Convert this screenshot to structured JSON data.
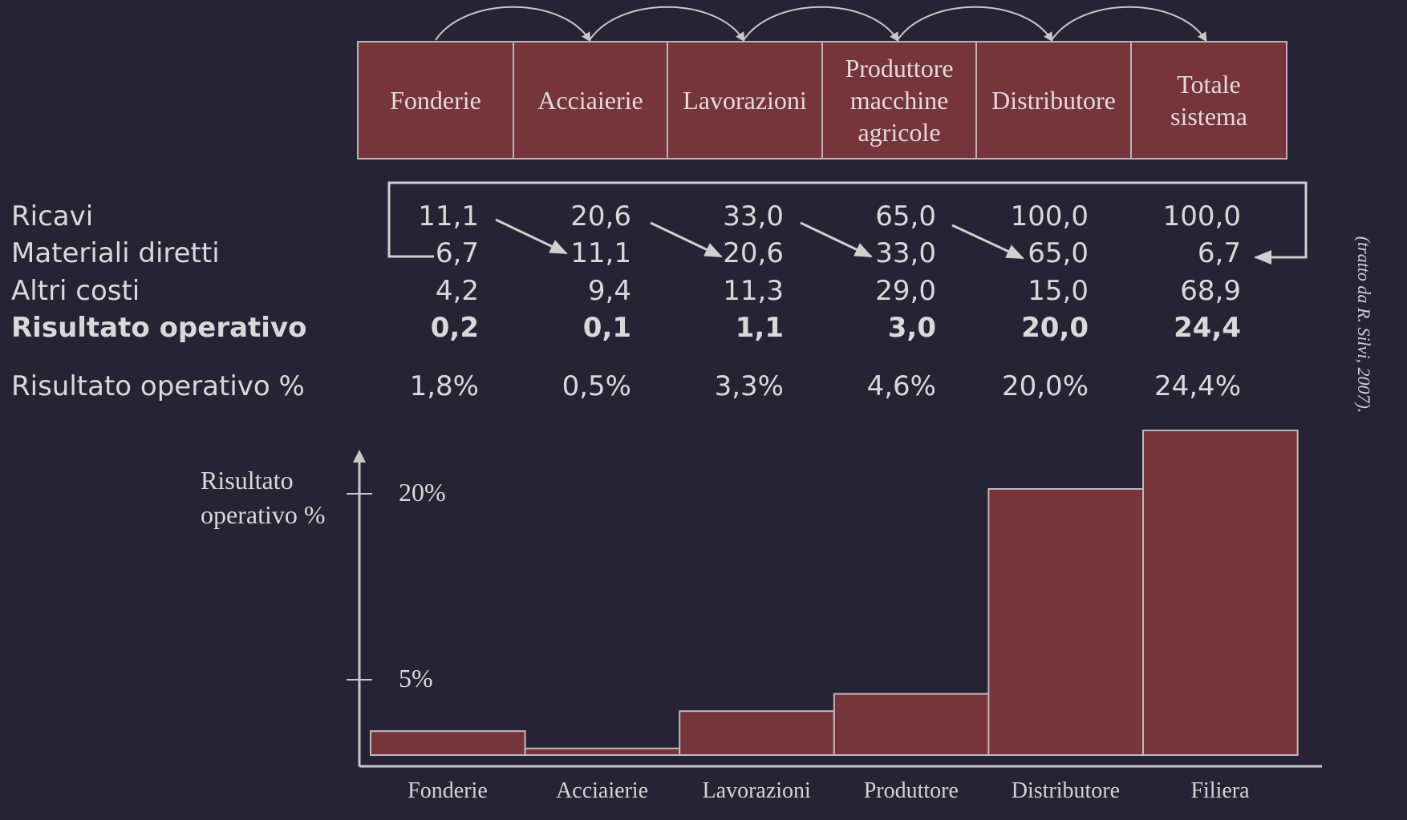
{
  "stages": [
    {
      "lines": [
        "Fonderie"
      ]
    },
    {
      "lines": [
        "Acciaierie"
      ]
    },
    {
      "lines": [
        "Lavorazioni"
      ]
    },
    {
      "lines": [
        "Produttore",
        "macchine",
        "agricole"
      ]
    },
    {
      "lines": [
        "Distributore"
      ]
    },
    {
      "lines": [
        "Totale",
        "sistema"
      ]
    }
  ],
  "table": {
    "rows": [
      {
        "label": "Ricavi",
        "bold": false,
        "values": [
          "11,1",
          "20,6",
          "33,0",
          "65,0",
          "100,0",
          "100,0"
        ]
      },
      {
        "label": "Materiali diretti",
        "bold": false,
        "values": [
          "6,7",
          "11,1",
          "20,6",
          "33,0",
          "65,0",
          "6,7"
        ]
      },
      {
        "label": "Altri costi",
        "bold": false,
        "values": [
          "4,2",
          "9,4",
          "11,3",
          "29,0",
          "15,0",
          "68,9"
        ]
      },
      {
        "label": "Risultato operativo",
        "bold": true,
        "values": [
          "0,2",
          "0,1",
          "1,1",
          "3,0",
          "20,0",
          "24,4"
        ]
      }
    ],
    "pct_row": {
      "label": "Risultato operativo %",
      "values": [
        "1,8%",
        "0,5%",
        "3,3%",
        "4,6%",
        "20,0%",
        "24,4%"
      ]
    }
  },
  "chart_data": {
    "type": "bar",
    "categories": [
      "Fonderie",
      "Acciaierie",
      "Lavorazioni",
      "Produttore",
      "Distributore",
      "Filiera"
    ],
    "values": [
      1.8,
      0.5,
      3.3,
      4.6,
      20.0,
      24.4
    ],
    "ylabel_lines": [
      "Risultato",
      "operativo %"
    ],
    "y_ticks": [
      {
        "value": 5,
        "label": "5%"
      },
      {
        "value": 20,
        "label": "20%"
      }
    ],
    "colors": {
      "bar": "#75353a",
      "bar_border": "#bdb9bd",
      "axis": "#c8c8c8"
    }
  },
  "credit": "(tratto da R. Silvi, 2007)."
}
